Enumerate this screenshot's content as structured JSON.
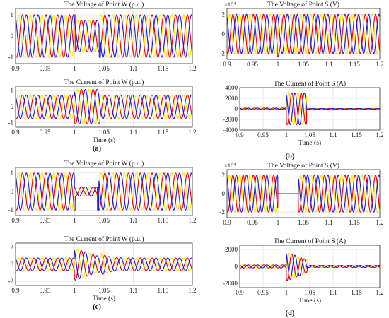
{
  "colors": {
    "phase_a": "#ffe600",
    "phase_b": "#e8000b",
    "phase_c": "#1a1adb",
    "grid": "#dcdcdc",
    "frame": "#333333"
  },
  "figure": {
    "panel_labels": [
      "(a)",
      "(b)",
      "(c)",
      "(d)"
    ]
  },
  "chart_data": [
    {
      "id": "a1",
      "type": "line",
      "title": "The Voltage of Point W (p.u.)",
      "xlabel": "",
      "ylabel": "",
      "xlim": [
        0.9,
        1.2
      ],
      "ylim": [
        -1.3,
        1.3
      ],
      "grid": true,
      "xticks": [
        0.9,
        0.95,
        1,
        1.05,
        1.1,
        1.15,
        1.2
      ],
      "yticks": [
        -1,
        0,
        1
      ],
      "xtick_labels": [
        "0.9",
        "0.95",
        "1",
        "1.05",
        "1.1",
        "1.15",
        "1.2"
      ],
      "ytick_labels": [
        "-1",
        "0",
        "1"
      ],
      "frequency_hz": 50,
      "series": [
        {
          "color": "yellow",
          "amplitude": 1.0,
          "phase_deg": 0
        },
        {
          "color": "red",
          "amplitude": 1.0,
          "phase_deg": -120
        },
        {
          "color": "blue",
          "amplitude": 1.0,
          "phase_deg": 120
        }
      ],
      "fault": {
        "start": 1.0,
        "end": 1.043,
        "amplitude_during": 0.75,
        "spike_at_start": 1.0,
        "spike_at_end": -1.0
      }
    },
    {
      "id": "a2",
      "type": "line",
      "title": "The Current of Point W (p.u.)",
      "xlabel": "Time (s)",
      "ylabel": "",
      "xlim": [
        0.9,
        1.2
      ],
      "ylim": [
        -1.3,
        1.3
      ],
      "grid": true,
      "xticks": [
        0.9,
        0.95,
        1,
        1.05,
        1.1,
        1.15,
        1.2
      ],
      "yticks": [
        -1,
        0,
        1
      ],
      "xtick_labels": [
        "0.9",
        "0.95",
        "1",
        "1.05",
        "1.1",
        "1.15",
        "1.2"
      ],
      "ytick_labels": [
        "-1",
        "0",
        "1"
      ],
      "frequency_hz": 50,
      "series": [
        {
          "color": "yellow",
          "amplitude": 0.75,
          "phase_deg": 0
        },
        {
          "color": "red",
          "amplitude": 0.75,
          "phase_deg": -120
        },
        {
          "color": "blue",
          "amplitude": 0.75,
          "phase_deg": 120
        }
      ],
      "fault": {
        "start": 1.0,
        "end": 1.043,
        "amplitude_during": 1.1,
        "spike_at_start": 0,
        "spike_at_end": 0
      }
    },
    {
      "id": "b1",
      "type": "line",
      "title": "The Voltage of Point S (V)",
      "xlabel": "",
      "ylabel": "",
      "exponent_label": "×10⁴",
      "xlim": [
        0.9,
        1.2
      ],
      "ylim": [
        -2.6,
        2.6
      ],
      "grid": true,
      "xticks": [
        0.9,
        0.95,
        1,
        1.05,
        1.1,
        1.15,
        1.2
      ],
      "yticks": [
        -2,
        0,
        2
      ],
      "xtick_labels": [
        "0.9",
        "0.95",
        "1",
        "1.05",
        "1.1",
        "1.15",
        "1.2"
      ],
      "ytick_labels": [
        "-2",
        "0",
        "2"
      ],
      "frequency_hz": 50,
      "series": [
        {
          "color": "yellow",
          "amplitude": 2.0,
          "phase_deg": 0
        },
        {
          "color": "red",
          "amplitude": 2.0,
          "phase_deg": -120
        },
        {
          "color": "blue",
          "amplitude": 2.0,
          "phase_deg": 120
        }
      ],
      "fault": {
        "start": 1.0,
        "end": 1.003,
        "amplitude_during": 2.0,
        "spike_at_start": -2.3,
        "spike_at_end": 0
      }
    },
    {
      "id": "b2",
      "type": "line",
      "title": "The Current of Point S (A)",
      "xlabel": "Time (s)",
      "ylabel": "",
      "xlim": [
        0.9,
        1.2
      ],
      "ylim": [
        -4000,
        4000
      ],
      "grid": true,
      "xticks": [
        0.9,
        0.95,
        1,
        1.05,
        1.1,
        1.15,
        1.2
      ],
      "yticks": [
        -4000,
        -2000,
        0,
        2000,
        4000
      ],
      "xtick_labels": [
        "0.9",
        "0.95",
        "1",
        "1.05",
        "1.1",
        "1.15",
        "1.2"
      ],
      "ytick_labels": [
        "-4000",
        "-2000",
        "0",
        "2000",
        "4000"
      ],
      "frequency_hz": 50,
      "series": [
        {
          "color": "yellow",
          "amplitude": 150,
          "phase_deg": 0
        },
        {
          "color": "red",
          "amplitude": 150,
          "phase_deg": -120
        },
        {
          "color": "blue",
          "amplitude": 150,
          "phase_deg": 120
        }
      ],
      "fault": {
        "start": 1.0,
        "end": 1.043,
        "amplitude_during": 3000,
        "post_amplitude": 60,
        "spike_at_start": 0,
        "spike_at_end": 0
      }
    },
    {
      "id": "c1",
      "type": "line",
      "title": "The Voltage of Point W (p.u.)",
      "xlabel": "",
      "ylabel": "",
      "xlim": [
        0.9,
        1.2
      ],
      "ylim": [
        -1.3,
        1.3
      ],
      "grid": true,
      "xticks": [
        0.9,
        0.95,
        1,
        1.05,
        1.1,
        1.15,
        1.2
      ],
      "yticks": [
        -1,
        0,
        1
      ],
      "xtick_labels": [
        "0.9",
        "0.95",
        "1",
        "1.05",
        "1.1",
        "1.15",
        "1.2"
      ],
      "ytick_labels": [
        "-1",
        "0",
        "1"
      ],
      "frequency_hz": 50,
      "series": [
        {
          "color": "yellow",
          "amplitude": 1.0,
          "phase_deg": 0
        },
        {
          "color": "red",
          "amplitude": 1.0,
          "phase_deg": -120
        },
        {
          "color": "blue",
          "amplitude": 1.0,
          "phase_deg": 120
        }
      ],
      "fault": {
        "start": 1.0,
        "end": 1.04,
        "amplitude_during": 0.25,
        "spike_at_start": -1.0,
        "spike_at_end": -1.0
      }
    },
    {
      "id": "c2",
      "type": "line",
      "title": "The Current of Point W (p.u.)",
      "xlabel": "Time (s)",
      "ylabel": "",
      "xlim": [
        0.9,
        1.2
      ],
      "ylim": [
        -2.5,
        2.5
      ],
      "grid": true,
      "xticks": [
        0.9,
        0.95,
        1,
        1.05,
        1.1,
        1.15,
        1.2
      ],
      "yticks": [
        -2,
        0,
        2
      ],
      "xtick_labels": [
        "0.9",
        "0.95",
        "1",
        "1.05",
        "1.1",
        "1.15",
        "1.2"
      ],
      "ytick_labels": [
        "-2",
        "0",
        "2"
      ],
      "frequency_hz": 50,
      "series": [
        {
          "color": "yellow",
          "amplitude": 0.75,
          "phase_deg": 0
        },
        {
          "color": "red",
          "amplitude": 0.75,
          "phase_deg": -120
        },
        {
          "color": "blue",
          "amplitude": 0.75,
          "phase_deg": 120
        }
      ],
      "fault": {
        "start": 1.0,
        "end": 1.045,
        "amplitude_during": 1.9,
        "decay": true,
        "spike_at_start": 0,
        "spike_at_end": 0
      }
    },
    {
      "id": "d1",
      "type": "line",
      "title": "The Voltage of Point S (V)",
      "xlabel": "",
      "ylabel": "",
      "exponent_label": "×10⁴",
      "xlim": [
        0.9,
        1.2
      ],
      "ylim": [
        -2.6,
        2.6
      ],
      "grid": true,
      "xticks": [
        0.9,
        0.95,
        1,
        1.05,
        1.1,
        1.15,
        1.2
      ],
      "yticks": [
        -2,
        0,
        2
      ],
      "xtick_labels": [
        "0.9",
        "0.95",
        "1",
        "1.05",
        "1.1",
        "1.15",
        "1.2"
      ],
      "ytick_labels": [
        "-2",
        "0",
        "2"
      ],
      "frequency_hz": 50,
      "series": [
        {
          "color": "yellow",
          "amplitude": 2.0,
          "phase_deg": 0
        },
        {
          "color": "red",
          "amplitude": 2.0,
          "phase_deg": -120
        },
        {
          "color": "blue",
          "amplitude": 2.0,
          "phase_deg": 120
        }
      ],
      "fault": {
        "start": 1.0,
        "end": 1.04,
        "amplitude_during": 0,
        "spike_at_start": 0,
        "spike_at_end": 0
      }
    },
    {
      "id": "d2",
      "type": "line",
      "title": "The Current of Point S (A)",
      "xlabel": "Time (s)",
      "ylabel": "",
      "xlim": [
        0.9,
        1.2
      ],
      "ylim": [
        -2500,
        2500
      ],
      "grid": true,
      "xticks": [
        0.9,
        0.95,
        1,
        1.05,
        1.1,
        1.15,
        1.2
      ],
      "yticks": [
        -2000,
        0,
        2000
      ],
      "xtick_labels": [
        "0.9",
        "0.95",
        "1",
        "1.05",
        "1.1",
        "1.15",
        "1.2"
      ],
      "ytick_labels": [
        "-2000",
        "0",
        "2000"
      ],
      "frequency_hz": 50,
      "series": [
        {
          "color": "yellow",
          "amplitude": 180,
          "phase_deg": 0
        },
        {
          "color": "red",
          "amplitude": 180,
          "phase_deg": -120
        },
        {
          "color": "blue",
          "amplitude": 180,
          "phase_deg": 120
        }
      ],
      "fault": {
        "start": 1.0,
        "end": 1.045,
        "amplitude_during": 1700,
        "decay": true,
        "post_amplitude": 120,
        "spike_at_start": 0,
        "spike_at_end": 0
      }
    }
  ]
}
